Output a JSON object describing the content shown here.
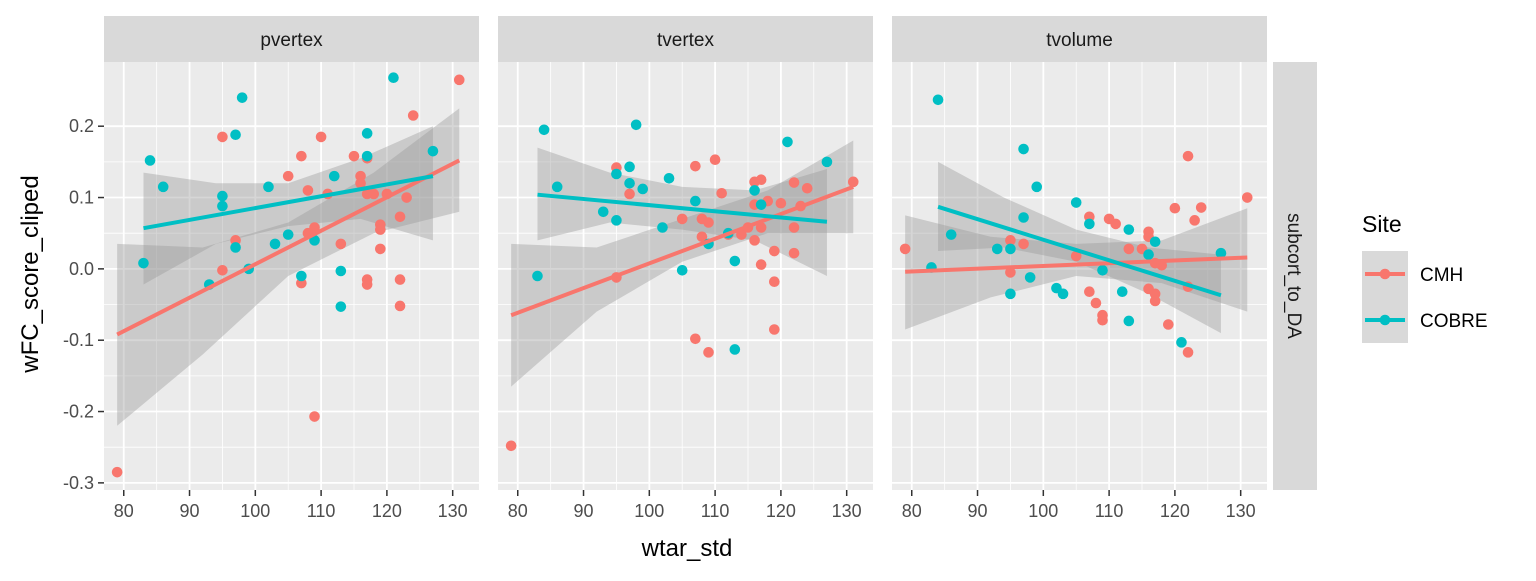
{
  "chart_data": {
    "type": "scatter",
    "xlabel": "wtar_std",
    "ylabel": "wFC_score_cliped",
    "xlim": [
      77,
      134
    ],
    "ylim": [
      -0.31,
      0.29
    ],
    "x_ticks": [
      80,
      90,
      100,
      110,
      120,
      130
    ],
    "y_ticks": [
      -0.3,
      -0.2,
      -0.1,
      0.0,
      0.1,
      0.2
    ],
    "y_tick_labels": [
      "-0.3",
      "-0.2",
      "-0.1",
      "0.0",
      "0.1",
      "0.2"
    ],
    "row_strip": "subcort_to_DA",
    "grid": true,
    "legend": {
      "title": "Site",
      "position": "right",
      "entries": [
        {
          "label": "CMH",
          "color": "#F8766D"
        },
        {
          "label": "COBRE",
          "color": "#00BFC4"
        }
      ]
    },
    "panels": [
      {
        "title": "pvertex",
        "series": [
          {
            "name": "CMH",
            "color": "#F8766D",
            "points": [
              [
                79,
                -0.285
              ],
              [
                95,
                0.185
              ],
              [
                95,
                -0.002
              ],
              [
                97,
                0.04
              ],
              [
                105,
                0.13
              ],
              [
                107,
                0.158
              ],
              [
                107,
                -0.02
              ],
              [
                108,
                0.11
              ],
              [
                108,
                0.05
              ],
              [
                109,
                0.058
              ],
              [
                109,
                -0.207
              ],
              [
                110,
                0.185
              ],
              [
                111,
                0.105
              ],
              [
                113,
                0.035
              ],
              [
                115,
                0.158
              ],
              [
                116,
                0.13
              ],
              [
                116,
                0.12
              ],
              [
                117,
                0.155
              ],
              [
                117,
                0.105
              ],
              [
                117,
                -0.015
              ],
              [
                117,
                -0.022
              ],
              [
                118,
                0.105
              ],
              [
                119,
                0.062
              ],
              [
                119,
                0.055
              ],
              [
                119,
                0.028
              ],
              [
                120,
                0.105
              ],
              [
                122,
                0.073
              ],
              [
                122,
                -0.015
              ],
              [
                122,
                -0.052
              ],
              [
                123,
                0.1
              ],
              [
                124,
                0.215
              ],
              [
                131,
                0.265
              ]
            ]
          },
          {
            "name": "COBRE",
            "color": "#00BFC4",
            "points": [
              [
                83,
                0.008
              ],
              [
                84,
                0.152
              ],
              [
                86,
                0.115
              ],
              [
                93,
                -0.022
              ],
              [
                95,
                0.102
              ],
              [
                95,
                0.088
              ],
              [
                97,
                0.188
              ],
              [
                97,
                0.03
              ],
              [
                98,
                0.24
              ],
              [
                99,
                0.0
              ],
              [
                102,
                0.115
              ],
              [
                103,
                0.035
              ],
              [
                105,
                0.048
              ],
              [
                107,
                -0.01
              ],
              [
                109,
                0.04
              ],
              [
                112,
                0.13
              ],
              [
                113,
                -0.003
              ],
              [
                113,
                -0.053
              ],
              [
                117,
                0.19
              ],
              [
                117,
                0.158
              ],
              [
                121,
                0.268
              ],
              [
                127,
                0.165
              ]
            ]
          }
        ],
        "fits": [
          {
            "name": "CMH",
            "x": [
              79,
              131
            ],
            "y": [
              -0.092,
              0.152
            ],
            "ci": [
              [
                79,
                -0.22,
                0.035
              ],
              [
                92,
                -0.12,
                0.03
              ],
              [
                105,
                -0.01,
                0.065
              ],
              [
                118,
                0.05,
                0.135
              ],
              [
                131,
                0.08,
                0.225
              ]
            ]
          },
          {
            "name": "COBRE",
            "x": [
              83,
              127
            ],
            "y": [
              0.057,
              0.13
            ],
            "ci": [
              [
                83,
                -0.022,
                0.135
              ],
              [
                94,
                0.035,
                0.12
              ],
              [
                105,
                0.06,
                0.12
              ],
              [
                116,
                0.07,
                0.155
              ],
              [
                127,
                0.04,
                0.2
              ]
            ]
          }
        ]
      },
      {
        "title": "tvertex",
        "series": [
          {
            "name": "CMH",
            "color": "#F8766D",
            "points": [
              [
                79,
                -0.248
              ],
              [
                95,
                0.142
              ],
              [
                95,
                -0.012
              ],
              [
                97,
                0.105
              ],
              [
                105,
                0.07
              ],
              [
                107,
                0.144
              ],
              [
                107,
                -0.098
              ],
              [
                108,
                0.07
              ],
              [
                108,
                0.045
              ],
              [
                109,
                0.065
              ],
              [
                109,
                -0.117
              ],
              [
                110,
                0.153
              ],
              [
                111,
                0.106
              ],
              [
                112,
                0.048
              ],
              [
                114,
                0.048
              ],
              [
                115,
                0.058
              ],
              [
                116,
                0.122
              ],
              [
                116,
                0.09
              ],
              [
                116,
                0.04
              ],
              [
                117,
                0.125
              ],
              [
                117,
                0.006
              ],
              [
                117,
                0.058
              ],
              [
                118,
                0.095
              ],
              [
                119,
                0.025
              ],
              [
                119,
                -0.018
              ],
              [
                119,
                -0.085
              ],
              [
                120,
                0.092
              ],
              [
                122,
                0.121
              ],
              [
                122,
                0.058
              ],
              [
                122,
                0.022
              ],
              [
                123,
                0.088
              ],
              [
                124,
                0.113
              ],
              [
                131,
                0.122
              ]
            ]
          },
          {
            "name": "COBRE",
            "color": "#00BFC4",
            "points": [
              [
                83,
                -0.01
              ],
              [
                84,
                0.195
              ],
              [
                86,
                0.115
              ],
              [
                93,
                0.08
              ],
              [
                95,
                0.133
              ],
              [
                95,
                0.068
              ],
              [
                97,
                0.143
              ],
              [
                97,
                0.12
              ],
              [
                98,
                0.202
              ],
              [
                99,
                0.112
              ],
              [
                102,
                0.058
              ],
              [
                103,
                0.127
              ],
              [
                105,
                -0.002
              ],
              [
                107,
                0.095
              ],
              [
                109,
                0.035
              ],
              [
                112,
                0.05
              ],
              [
                113,
                0.011
              ],
              [
                113,
                -0.113
              ],
              [
                116,
                0.11
              ],
              [
                117,
                0.09
              ],
              [
                121,
                0.178
              ],
              [
                127,
                0.15
              ]
            ]
          }
        ],
        "fits": [
          {
            "name": "CMH",
            "x": [
              79,
              131
            ],
            "y": [
              -0.065,
              0.115
            ],
            "ci": [
              [
                79,
                -0.165,
                0.035
              ],
              [
                92,
                -0.06,
                0.03
              ],
              [
                105,
                0.01,
                0.07
              ],
              [
                118,
                0.05,
                0.11
              ],
              [
                131,
                0.05,
                0.18
              ]
            ]
          },
          {
            "name": "COBRE",
            "x": [
              83,
              127
            ],
            "y": [
              0.104,
              0.066
            ],
            "ci": [
              [
                83,
                0.04,
                0.17
              ],
              [
                94,
                0.065,
                0.135
              ],
              [
                105,
                0.055,
                0.115
              ],
              [
                116,
                0.04,
                0.11
              ],
              [
                127,
                -0.01,
                0.14
              ]
            ]
          }
        ]
      },
      {
        "title": "tvolume",
        "series": [
          {
            "name": "CMH",
            "color": "#F8766D",
            "points": [
              [
                79,
                0.028
              ],
              [
                95,
                0.04
              ],
              [
                95,
                -0.005
              ],
              [
                97,
                0.035
              ],
              [
                105,
                0.018
              ],
              [
                107,
                0.073
              ],
              [
                107,
                -0.032
              ],
              [
                108,
                -0.048
              ],
              [
                109,
                -0.065
              ],
              [
                109,
                -0.072
              ],
              [
                110,
                0.07
              ],
              [
                111,
                0.063
              ],
              [
                113,
                0.028
              ],
              [
                115,
                0.028
              ],
              [
                116,
                0.052
              ],
              [
                116,
                0.045
              ],
              [
                116,
                -0.028
              ],
              [
                117,
                0.008
              ],
              [
                117,
                -0.035
              ],
              [
                117,
                -0.045
              ],
              [
                118,
                0.005
              ],
              [
                119,
                -0.078
              ],
              [
                120,
                0.085
              ],
              [
                122,
                0.158
              ],
              [
                122,
                -0.025
              ],
              [
                122,
                -0.117
              ],
              [
                123,
                0.068
              ],
              [
                124,
                0.086
              ],
              [
                131,
                0.1
              ]
            ]
          },
          {
            "name": "COBRE",
            "color": "#00BFC4",
            "points": [
              [
                83,
                0.002
              ],
              [
                84,
                0.237
              ],
              [
                86,
                0.048
              ],
              [
                93,
                0.028
              ],
              [
                95,
                0.028
              ],
              [
                95,
                -0.035
              ],
              [
                97,
                0.168
              ],
              [
                97,
                0.072
              ],
              [
                98,
                -0.012
              ],
              [
                99,
                0.115
              ],
              [
                102,
                -0.027
              ],
              [
                103,
                -0.035
              ],
              [
                105,
                0.093
              ],
              [
                107,
                0.063
              ],
              [
                109,
                -0.002
              ],
              [
                112,
                -0.032
              ],
              [
                113,
                0.055
              ],
              [
                113,
                -0.073
              ],
              [
                116,
                0.02
              ],
              [
                117,
                0.038
              ],
              [
                121,
                -0.103
              ],
              [
                127,
                0.022
              ]
            ]
          }
        ],
        "fits": [
          {
            "name": "CMH",
            "x": [
              79,
              131
            ],
            "y": [
              -0.004,
              0.016
            ],
            "ci": [
              [
                79,
                -0.085,
                0.075
              ],
              [
                92,
                -0.04,
                0.045
              ],
              [
                105,
                -0.01,
                0.035
              ],
              [
                118,
                -0.02,
                0.04
              ],
              [
                131,
                -0.06,
                0.085
              ]
            ]
          },
          {
            "name": "COBRE",
            "x": [
              84,
              127
            ],
            "y": [
              0.087,
              -0.037
            ],
            "ci": [
              [
                84,
                0.025,
                0.15
              ],
              [
                94,
                0.03,
                0.1
              ],
              [
                105,
                0.01,
                0.055
              ],
              [
                116,
                -0.035,
                0.03
              ],
              [
                127,
                -0.09,
                0.02
              ]
            ]
          }
        ]
      }
    ]
  }
}
